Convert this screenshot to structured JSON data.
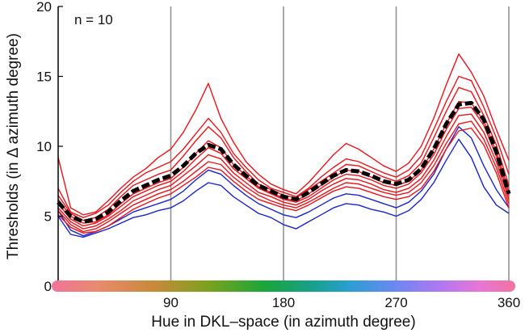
{
  "chart_data": {
    "type": "line",
    "annotation": "n = 10",
    "xlabel": "Hue in DKL–space (in azimuth degree)",
    "ylabel": "Thresholds (in Δ azimuth degree)",
    "xlim": [
      0,
      360
    ],
    "ylim": [
      0,
      20
    ],
    "x_ticks": [
      90,
      180,
      270,
      360
    ],
    "y_ticks": [
      0,
      5,
      10,
      15,
      20
    ],
    "grid": "vertical lines at x = 90, 180, 270, 360",
    "hue_bar": true,
    "colors": {
      "individual": "#e8141c",
      "individual_low": "#1c24c8",
      "mean": "#000000",
      "grid": "#8c8c8c",
      "axis": "#000000"
    },
    "x": [
      0,
      10,
      20,
      30,
      40,
      50,
      60,
      70,
      80,
      90,
      100,
      110,
      120,
      130,
      140,
      150,
      160,
      170,
      180,
      190,
      200,
      210,
      220,
      230,
      240,
      250,
      260,
      270,
      280,
      290,
      300,
      310,
      320,
      330,
      340,
      350,
      360
    ],
    "mean_series": {
      "name": "mean",
      "values": [
        6.0,
        5.0,
        4.6,
        4.8,
        5.3,
        6.1,
        6.8,
        7.2,
        7.6,
        7.9,
        8.6,
        9.5,
        10.1,
        9.8,
        8.7,
        7.9,
        7.2,
        6.8,
        6.4,
        6.2,
        6.7,
        7.3,
        7.9,
        8.3,
        8.2,
        7.9,
        7.5,
        7.3,
        7.6,
        8.4,
        9.8,
        11.6,
        13.0,
        13.1,
        11.9,
        9.6,
        6.6
      ]
    },
    "series": [
      {
        "values": [
          9.2,
          5.6,
          5.1,
          5.3,
          6.1,
          7.0,
          7.8,
          8.4,
          9.2,
          9.8,
          11.0,
          12.6,
          14.5,
          12.0,
          10.3,
          8.9,
          8.0,
          7.3,
          6.9,
          6.6,
          7.4,
          8.4,
          9.4,
          10.2,
          9.8,
          9.2,
          8.6,
          8.2,
          8.8,
          10.0,
          12.0,
          14.4,
          16.6,
          15.3,
          13.6,
          11.2,
          9.0
        ]
      },
      {
        "values": [
          7.0,
          5.3,
          4.9,
          5.2,
          5.8,
          6.7,
          7.5,
          8.1,
          8.5,
          8.9,
          9.8,
          10.9,
          12.0,
          11.0,
          9.5,
          8.5,
          7.6,
          7.0,
          6.7,
          6.4,
          7.0,
          7.8,
          8.5,
          9.1,
          8.9,
          8.5,
          8.1,
          7.8,
          8.3,
          9.3,
          11.2,
          13.2,
          15.0,
          14.7,
          12.8,
          10.6,
          8.0
        ]
      },
      {
        "values": [
          6.5,
          5.2,
          4.7,
          4.9,
          5.5,
          6.4,
          7.2,
          7.6,
          8.0,
          8.3,
          9.3,
          10.4,
          11.4,
          10.6,
          9.2,
          8.2,
          7.3,
          6.9,
          6.5,
          6.3,
          6.9,
          7.5,
          8.1,
          8.7,
          8.6,
          8.2,
          7.8,
          7.5,
          7.9,
          8.8,
          10.6,
          12.5,
          14.2,
          13.9,
          12.2,
          10.1,
          7.2
        ]
      },
      {
        "values": [
          6.2,
          5.0,
          4.5,
          4.6,
          5.1,
          5.9,
          6.6,
          7.0,
          7.4,
          7.7,
          8.5,
          9.5,
          10.4,
          9.9,
          8.7,
          7.9,
          7.1,
          6.7,
          6.3,
          6.1,
          6.6,
          7.2,
          7.8,
          8.3,
          8.2,
          7.8,
          7.4,
          7.2,
          7.5,
          8.3,
          9.8,
          11.6,
          13.2,
          13.1,
          11.8,
          9.6,
          6.8
        ]
      },
      {
        "values": [
          5.9,
          4.8,
          4.3,
          4.5,
          5.0,
          5.7,
          6.4,
          6.8,
          7.2,
          7.5,
          8.2,
          9.1,
          9.9,
          9.5,
          8.4,
          7.7,
          7.0,
          6.6,
          6.2,
          6.0,
          6.4,
          7.0,
          7.6,
          8.0,
          7.9,
          7.6,
          7.2,
          7.0,
          7.3,
          8.1,
          9.4,
          11.2,
          12.7,
          12.8,
          11.5,
          9.3,
          6.5
        ]
      },
      {
        "values": [
          5.6,
          4.6,
          4.1,
          4.3,
          4.8,
          5.4,
          6.1,
          6.5,
          6.9,
          7.2,
          7.9,
          8.6,
          9.4,
          9.1,
          8.1,
          7.4,
          6.7,
          6.4,
          6.0,
          5.8,
          6.2,
          6.8,
          7.3,
          7.7,
          7.6,
          7.3,
          6.9,
          6.7,
          7.0,
          7.7,
          9.0,
          10.7,
          12.2,
          12.3,
          11.0,
          8.9,
          6.2
        ]
      },
      {
        "values": [
          5.4,
          4.4,
          3.9,
          4.1,
          4.6,
          5.2,
          5.8,
          6.2,
          6.6,
          6.9,
          7.5,
          8.2,
          8.9,
          8.7,
          7.8,
          7.1,
          6.5,
          6.1,
          5.8,
          5.6,
          6.0,
          6.5,
          7.0,
          7.4,
          7.3,
          7.0,
          6.7,
          6.5,
          6.7,
          7.4,
          8.6,
          10.2,
          11.6,
          11.8,
          10.5,
          8.5,
          5.9
        ]
      },
      {
        "values": [
          5.1,
          4.2,
          3.8,
          3.9,
          4.3,
          4.9,
          5.5,
          5.9,
          6.3,
          6.6,
          7.2,
          7.8,
          8.5,
          8.3,
          7.5,
          6.8,
          6.2,
          5.9,
          5.6,
          5.4,
          5.8,
          6.3,
          6.8,
          7.1,
          7.0,
          6.7,
          6.4,
          6.2,
          6.4,
          7.0,
          8.2,
          9.8,
          11.1,
          11.3,
          10.1,
          8.1,
          5.6
        ]
      }
    ],
    "low_series": [
      {
        "values": [
          5.0,
          3.7,
          3.5,
          3.8,
          4.1,
          4.5,
          4.9,
          5.1,
          5.4,
          5.6,
          6.1,
          6.8,
          7.4,
          7.2,
          6.4,
          5.8,
          5.2,
          4.9,
          4.4,
          4.1,
          4.6,
          5.1,
          5.6,
          5.9,
          5.8,
          5.5,
          5.3,
          5.0,
          5.4,
          6.2,
          7.4,
          9.0,
          10.5,
          9.2,
          7.1,
          5.8,
          5.2
        ]
      },
      {
        "values": [
          5.4,
          4.0,
          3.6,
          3.9,
          4.3,
          4.8,
          5.3,
          5.6,
          5.9,
          6.2,
          6.8,
          7.6,
          8.3,
          8.0,
          7.2,
          6.5,
          5.9,
          5.5,
          5.1,
          4.9,
          5.3,
          5.8,
          6.3,
          6.6,
          6.5,
          6.2,
          5.9,
          5.6,
          6.0,
          6.8,
          8.0,
          9.8,
          11.4,
          10.6,
          8.6,
          6.9,
          5.6
        ]
      }
    ]
  }
}
